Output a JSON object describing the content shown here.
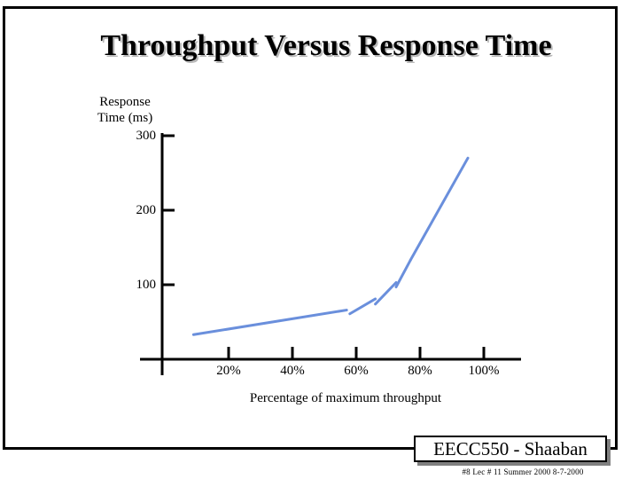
{
  "slide": {
    "title": "Throughput Versus Response Time",
    "badge": "EECC550 - Shaaban",
    "footer": "#8   Lec # 11  Summer 2000  8-7-2000"
  },
  "chart_data": {
    "type": "line",
    "title": "Throughput Versus Response Time",
    "ylabel_line1": "Response",
    "ylabel_line2": "Time (ms)",
    "xlabel": "Percentage of maximum throughput",
    "xlim": [
      0,
      113
    ],
    "ylim": [
      0,
      300
    ],
    "y_ticks": [
      100,
      200,
      300
    ],
    "y_tick_labels": [
      "100",
      "200",
      "300"
    ],
    "x_ticks": [
      20,
      40,
      60,
      80,
      100
    ],
    "x_tick_labels": [
      "20%",
      "40%",
      "60%",
      "80%",
      "100%"
    ],
    "line_color": "#6a8fdc",
    "series": [
      {
        "name": "segment-1",
        "x": [
          9,
          57
        ],
        "y": [
          33,
          66
        ]
      },
      {
        "name": "segment-2",
        "x": [
          58,
          66
        ],
        "y": [
          61,
          81
        ]
      },
      {
        "name": "segment-3",
        "x": [
          66,
          72.5
        ],
        "y": [
          74,
          103
        ]
      },
      {
        "name": "segment-4",
        "x": [
          72.5,
          77
        ],
        "y": [
          97,
          133
        ]
      },
      {
        "name": "segment-5",
        "x": [
          77,
          95
        ],
        "y": [
          133,
          270
        ]
      }
    ]
  }
}
